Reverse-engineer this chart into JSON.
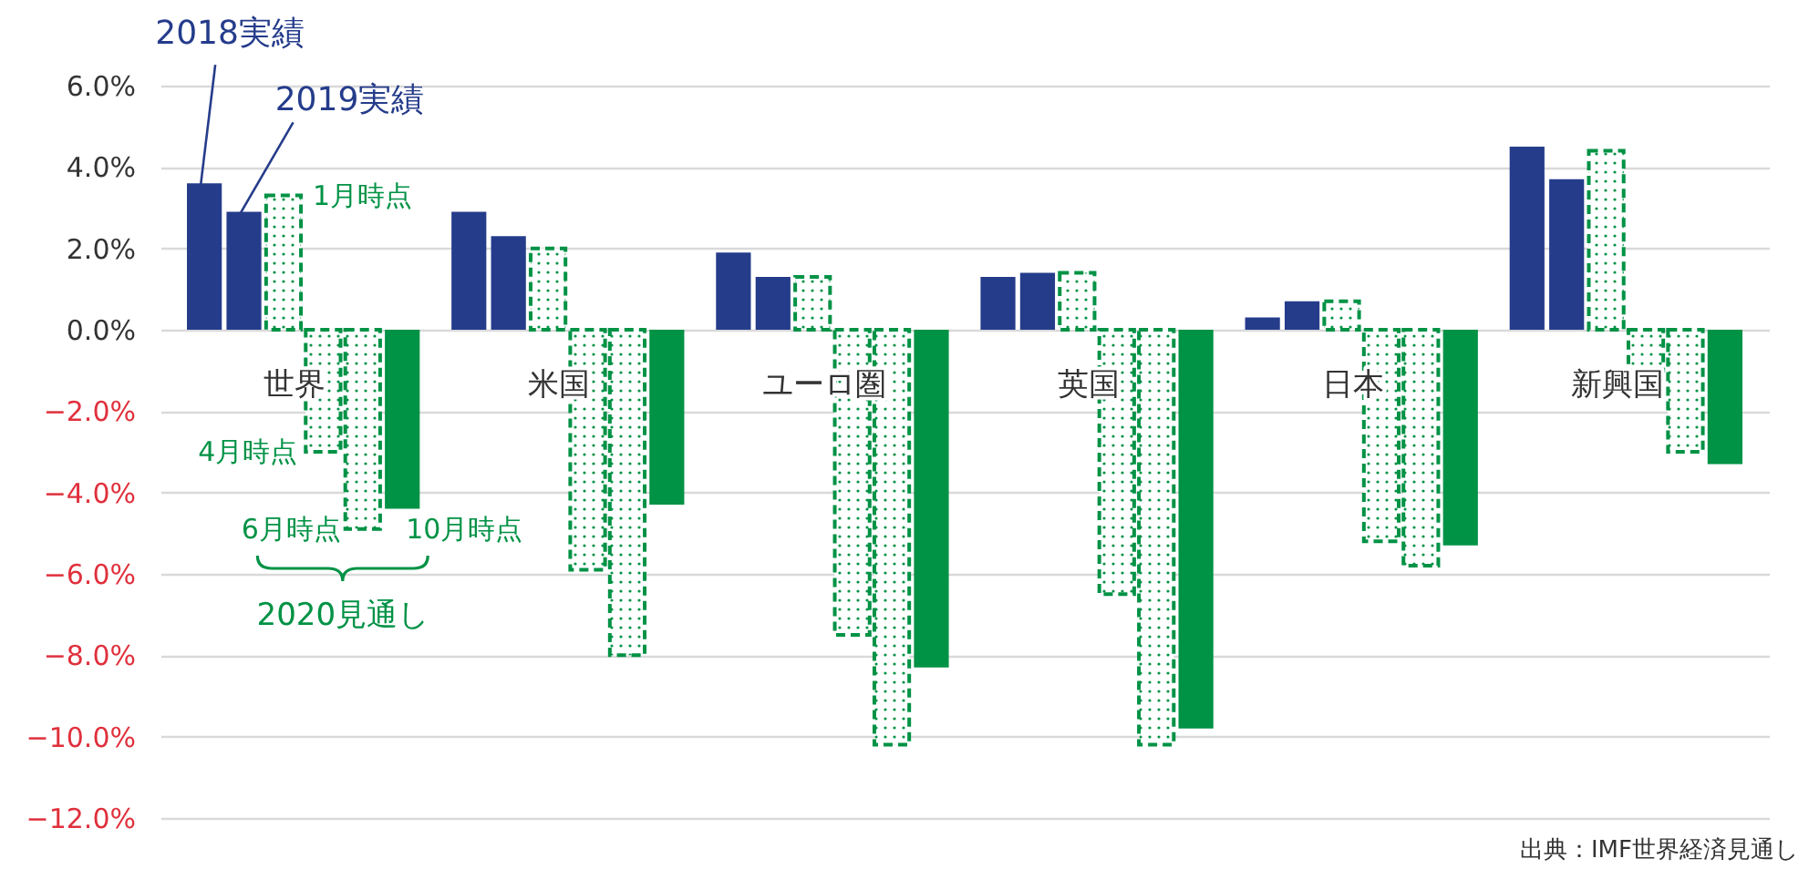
{
  "chart_data": {
    "type": "bar",
    "categories": [
      "世界",
      "米国",
      "ユーロ圏",
      "英国",
      "日本",
      "新興国"
    ],
    "series": [
      {
        "name": "2018実績",
        "color": "#253c8b",
        "values": [
          3.6,
          2.9,
          1.9,
          1.3,
          0.3,
          4.5
        ]
      },
      {
        "name": "2019実績",
        "color": "#253c8b",
        "values": [
          2.9,
          2.3,
          1.3,
          1.4,
          0.7,
          3.7
        ]
      },
      {
        "name": "1月時点",
        "color": "#009245",
        "line_style": "dashed",
        "values": [
          3.3,
          2.0,
          1.3,
          1.4,
          0.7,
          4.4
        ]
      },
      {
        "name": "4月時点",
        "color": "#009245",
        "line_style": "dashed",
        "values": [
          -3.0,
          -5.9,
          -7.5,
          -6.5,
          -5.2,
          -1.0
        ]
      },
      {
        "name": "6月時点",
        "color": "#009245",
        "line_style": "dashed",
        "values": [
          -4.9,
          -8.0,
          -10.2,
          -10.2,
          -5.8,
          -3.0
        ]
      },
      {
        "name": "10月時点",
        "color": "#009245",
        "values": [
          -4.4,
          -4.3,
          -8.3,
          -9.8,
          -5.3,
          -3.3
        ]
      }
    ],
    "ylim": [
      -12,
      6
    ],
    "yticks": [
      {
        "value": 6,
        "label": "6.0%"
      },
      {
        "value": 4,
        "label": "4.0%"
      },
      {
        "value": 2,
        "label": "2.0%"
      },
      {
        "value": 0,
        "label": "0.0%"
      },
      {
        "value": -2,
        "label": "−2.0%"
      },
      {
        "value": -4,
        "label": "−4.0%"
      },
      {
        "value": -6,
        "label": "−6.0%"
      },
      {
        "value": -8,
        "label": "−8.0%"
      },
      {
        "value": -10,
        "label": "−10.0%"
      },
      {
        "value": -12,
        "label": "−12.0%"
      }
    ],
    "grid": "y",
    "legend": false,
    "annotations": [
      "2020見通し",
      "出典：IMF世界経済見通し"
    ]
  }
}
